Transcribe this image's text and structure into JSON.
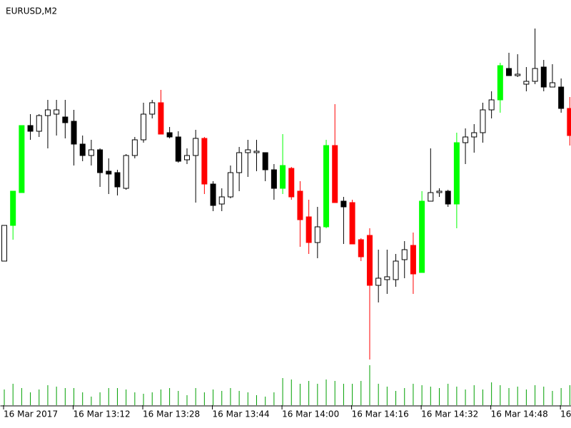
{
  "chart_data": {
    "type": "candlestick",
    "title": "EURUSD,M2",
    "categories": [
      "16 Mar 2017",
      null,
      null,
      null,
      null,
      null,
      null,
      null,
      "16 Mar 13:12",
      null,
      null,
      null,
      null,
      null,
      null,
      null,
      "16 Mar 13:28",
      null,
      null,
      null,
      null,
      null,
      null,
      null,
      "16 Mar 13:44",
      null,
      null,
      null,
      null,
      null,
      null,
      null,
      "16 Mar 14:00",
      null,
      null,
      null,
      null,
      null,
      null,
      null,
      "16 Mar 14:16",
      null,
      null,
      null,
      null,
      null,
      null,
      null,
      "16 Mar 14:32",
      null,
      null,
      null,
      null,
      null,
      null,
      null,
      "16 Mar 14:48",
      null,
      null,
      null,
      null,
      null,
      null,
      null,
      "16",
      null
    ],
    "open": [
      234,
      284,
      330,
      424,
      416,
      438,
      440,
      436,
      430,
      398,
      382,
      390,
      360,
      358,
      336,
      382,
      404,
      440,
      456,
      414,
      408,
      376,
      382,
      406,
      342,
      314,
      324,
      358,
      386,
      386,
      386,
      362,
      336,
      364,
      332,
      296,
      260,
      282,
      396,
      318,
      316,
      264,
      270,
      200,
      208,
      208,
      236,
      256,
      218,
      318,
      330,
      332,
      314,
      400,
      408,
      414,
      446,
      460,
      504,
      494,
      482,
      486,
      506,
      478,
      478,
      448
    ],
    "high": [
      284,
      332,
      424,
      440,
      440,
      460,
      460,
      460,
      446,
      410,
      404,
      392,
      378,
      362,
      384,
      408,
      456,
      460,
      474,
      422,
      416,
      392,
      418,
      408,
      346,
      336,
      368,
      394,
      404,
      404,
      386,
      370,
      412,
      366,
      346,
      320,
      310,
      404,
      454,
      324,
      320,
      266,
      280,
      250,
      250,
      244,
      262,
      274,
      332,
      392,
      336,
      334,
      414,
      420,
      426,
      456,
      472,
      512,
      526,
      524,
      506,
      560,
      516,
      510,
      490,
      464
    ],
    "low": [
      234,
      264,
      330,
      404,
      408,
      392,
      410,
      406,
      368,
      374,
      368,
      338,
      328,
      326,
      334,
      378,
      400,
      434,
      412,
      406,
      372,
      370,
      316,
      328,
      304,
      304,
      322,
      332,
      352,
      360,
      346,
      320,
      328,
      320,
      254,
      244,
      238,
      280,
      316,
      258,
      258,
      234,
      96,
      176,
      188,
      198,
      210,
      188,
      218,
      318,
      324,
      310,
      280,
      370,
      386,
      400,
      434,
      442,
      494,
      492,
      472,
      482,
      472,
      478,
      442,
      396
    ],
    "close": [
      284,
      332,
      424,
      416,
      438,
      446,
      446,
      428,
      398,
      382,
      390,
      358,
      356,
      338,
      382,
      404,
      440,
      456,
      412,
      408,
      374,
      382,
      406,
      342,
      312,
      324,
      358,
      386,
      390,
      388,
      362,
      336,
      368,
      324,
      292,
      260,
      282,
      396,
      316,
      310,
      258,
      240,
      200,
      210,
      212,
      234,
      250,
      216,
      318,
      330,
      332,
      314,
      400,
      408,
      414,
      446,
      460,
      508,
      494,
      496,
      486,
      504,
      478,
      484,
      448,
      410
    ],
    "colors": [
      "#ffffff",
      "#00ff00",
      "#00ff00",
      "#000000",
      "#ffffff",
      "#ffffff",
      "#ffffff",
      "#000000",
      "#000000",
      "#000000",
      "#ffffff",
      "#000000",
      "#000000",
      "#000000",
      "#ffffff",
      "#ffffff",
      "#ffffff",
      "#ffffff",
      "#ff0000",
      "#000000",
      "#000000",
      "#ffffff",
      "#ffffff",
      "#ff0000",
      "#000000",
      "#ffffff",
      "#ffffff",
      "#ffffff",
      "#ffffff",
      "#ffffff",
      "#000000",
      "#000000",
      "#00ff00",
      "#ff0000",
      "#ff0000",
      "#ff0000",
      "#ffffff",
      "#00ff00",
      "#ff0000",
      "#000000",
      "#ff0000",
      "#ff0000",
      "#ff0000",
      "#ffffff",
      "#ffffff",
      "#ffffff",
      "#ffffff",
      "#ff0000",
      "#00ff00",
      "#ffffff",
      "#ffffff",
      "#000000",
      "#00ff00",
      "#ffffff",
      "#ffffff",
      "#ffffff",
      "#ffffff",
      "#00ff00",
      "#000000",
      "#ffffff",
      "#ffffff",
      "#ffffff",
      "#000000",
      "#ffffff",
      "#000000",
      "#ff0000"
    ],
    "ylim": [
      32,
      600
    ],
    "volume": {
      "color": "#00a000",
      "ylim": [
        0,
        568
      ],
      "values": [
        22,
        30,
        24,
        18,
        22,
        28,
        26,
        24,
        24,
        18,
        12,
        18,
        24,
        24,
        22,
        18,
        16,
        18,
        22,
        24,
        20,
        14,
        24,
        18,
        22,
        20,
        24,
        20,
        18,
        14,
        12,
        18,
        38,
        36,
        30,
        34,
        30,
        36,
        34,
        30,
        30,
        34,
        56,
        30,
        26,
        20,
        24,
        30,
        28,
        26,
        24,
        30,
        26,
        22,
        28,
        22,
        32,
        28,
        24,
        26,
        22,
        28,
        26,
        20,
        24,
        28
      ]
    }
  }
}
